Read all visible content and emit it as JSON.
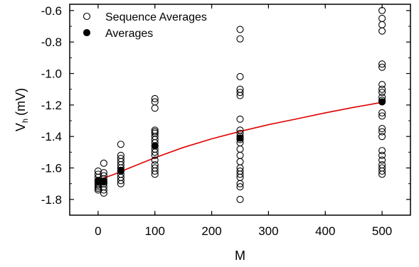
{
  "chart_data": {
    "type": "scatter",
    "xlabel": "M",
    "ylabel_main": "V",
    "ylabel_sub": "h",
    "ylabel_unit": "(mV)",
    "xlim": [
      -50,
      550
    ],
    "ylim": [
      -1.9,
      -0.56
    ],
    "x_ticks": [
      0,
      100,
      200,
      300,
      400,
      500
    ],
    "y_ticks": [
      -1.8,
      -1.6,
      -1.4,
      -1.2,
      -1.0,
      -0.8,
      -0.6
    ],
    "x_tick_labels": [
      "0",
      "100",
      "200",
      "300",
      "400",
      "500"
    ],
    "y_tick_labels": [
      "-1.8",
      "-1.6",
      "-1.4",
      "-1.2",
      "-1.0",
      "-0.8",
      "-0.6"
    ],
    "legend": {
      "position": "top-left",
      "entries": [
        "Sequence Averages",
        "Averages"
      ]
    },
    "series": [
      {
        "name": "Sequence Averages",
        "marker": "open-circle",
        "points": [
          [
            0,
            -1.62
          ],
          [
            0,
            -1.64
          ],
          [
            0,
            -1.66
          ],
          [
            0,
            -1.68
          ],
          [
            0,
            -1.69
          ],
          [
            0,
            -1.7
          ],
          [
            0,
            -1.71
          ],
          [
            0,
            -1.72
          ],
          [
            0,
            -1.73
          ],
          [
            0,
            -1.74
          ],
          [
            10,
            -1.57
          ],
          [
            10,
            -1.63
          ],
          [
            10,
            -1.65
          ],
          [
            10,
            -1.67
          ],
          [
            10,
            -1.69
          ],
          [
            10,
            -1.7
          ],
          [
            10,
            -1.72
          ],
          [
            10,
            -1.74
          ],
          [
            10,
            -1.76
          ],
          [
            40,
            -1.45
          ],
          [
            40,
            -1.52
          ],
          [
            40,
            -1.54
          ],
          [
            40,
            -1.56
          ],
          [
            40,
            -1.58
          ],
          [
            40,
            -1.6
          ],
          [
            40,
            -1.62
          ],
          [
            40,
            -1.64
          ],
          [
            40,
            -1.66
          ],
          [
            40,
            -1.68
          ],
          [
            40,
            -1.7
          ],
          [
            100,
            -1.16
          ],
          [
            100,
            -1.18
          ],
          [
            100,
            -1.22
          ],
          [
            100,
            -1.36
          ],
          [
            100,
            -1.37
          ],
          [
            100,
            -1.38
          ],
          [
            100,
            -1.4
          ],
          [
            100,
            -1.42
          ],
          [
            100,
            -1.44
          ],
          [
            100,
            -1.46
          ],
          [
            100,
            -1.48
          ],
          [
            100,
            -1.5
          ],
          [
            100,
            -1.52
          ],
          [
            100,
            -1.55
          ],
          [
            100,
            -1.58
          ],
          [
            100,
            -1.6
          ],
          [
            100,
            -1.62
          ],
          [
            100,
            -1.64
          ],
          [
            250,
            -0.72
          ],
          [
            250,
            -0.78
          ],
          [
            250,
            -1.02
          ],
          [
            250,
            -1.1
          ],
          [
            250,
            -1.12
          ],
          [
            250,
            -1.14
          ],
          [
            250,
            -1.29
          ],
          [
            250,
            -1.36
          ],
          [
            250,
            -1.38
          ],
          [
            250,
            -1.4
          ],
          [
            250,
            -1.42
          ],
          [
            250,
            -1.44
          ],
          [
            250,
            -1.48
          ],
          [
            250,
            -1.52
          ],
          [
            250,
            -1.56
          ],
          [
            250,
            -1.6
          ],
          [
            250,
            -1.62
          ],
          [
            250,
            -1.64
          ],
          [
            250,
            -1.66
          ],
          [
            250,
            -1.7
          ],
          [
            250,
            -1.72
          ],
          [
            250,
            -1.8
          ],
          [
            500,
            -0.6
          ],
          [
            500,
            -0.65
          ],
          [
            500,
            -0.69
          ],
          [
            500,
            -0.73
          ],
          [
            500,
            -0.94
          ],
          [
            500,
            -0.96
          ],
          [
            500,
            -1.07
          ],
          [
            500,
            -1.1
          ],
          [
            500,
            -1.12
          ],
          [
            500,
            -1.15
          ],
          [
            500,
            -1.17
          ],
          [
            500,
            -1.25
          ],
          [
            500,
            -1.27
          ],
          [
            500,
            -1.35
          ],
          [
            500,
            -1.37
          ],
          [
            500,
            -1.4
          ],
          [
            500,
            -1.49
          ],
          [
            500,
            -1.52
          ],
          [
            500,
            -1.55
          ],
          [
            500,
            -1.58
          ],
          [
            500,
            -1.6
          ],
          [
            500,
            -1.62
          ],
          [
            500,
            -1.64
          ]
        ]
      },
      {
        "name": "Averages",
        "marker": "filled-circle",
        "points": [
          [
            0,
            -1.685
          ],
          [
            10,
            -1.685
          ],
          [
            40,
            -1.615
          ],
          [
            100,
            -1.46
          ],
          [
            250,
            -1.41
          ],
          [
            500,
            -1.18
          ]
        ]
      }
    ],
    "fit_line": {
      "color": "#e00000",
      "points": [
        [
          0,
          -1.675
        ],
        [
          25,
          -1.645
        ],
        [
          50,
          -1.608
        ],
        [
          100,
          -1.535
        ],
        [
          150,
          -1.47
        ],
        [
          200,
          -1.415
        ],
        [
          250,
          -1.368
        ],
        [
          300,
          -1.325
        ],
        [
          350,
          -1.288
        ],
        [
          400,
          -1.25
        ],
        [
          450,
          -1.215
        ],
        [
          500,
          -1.183
        ]
      ]
    }
  }
}
